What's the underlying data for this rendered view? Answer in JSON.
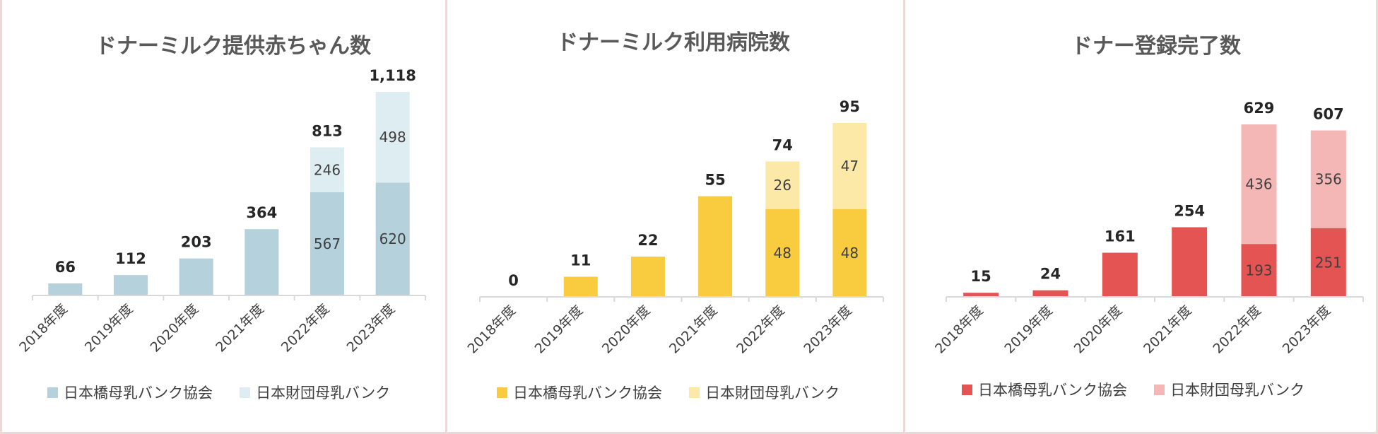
{
  "chart_data": [
    {
      "type": "bar",
      "stacked": true,
      "title": "ドナーミルク提供赤ちゃん数",
      "categories": [
        "2018年度",
        "2019年度",
        "2020年度",
        "2021年度",
        "2022年度",
        "2023年度"
      ],
      "series": [
        {
          "name": "日本橋母乳バンク協会",
          "values": [
            66,
            112,
            203,
            364,
            567,
            620
          ],
          "color": "#b4d1dc"
        },
        {
          "name": "日本財団母乳バンク",
          "values": [
            0,
            0,
            0,
            0,
            246,
            498
          ],
          "color": "#deedf2"
        }
      ],
      "totals": [
        66,
        112,
        203,
        364,
        813,
        1118
      ],
      "total_labels": [
        "66",
        "112",
        "203",
        "364",
        "813",
        "1,118"
      ],
      "show_segment_labels": [
        false,
        false,
        false,
        false,
        true,
        true
      ],
      "ylim": [
        0,
        1118
      ],
      "legend": "bottom",
      "grid": false
    },
    {
      "type": "bar",
      "stacked": true,
      "title": "ドナーミルク利用病院数",
      "categories": [
        "2018年度",
        "2019年度",
        "2020年度",
        "2021年度",
        "2022年度",
        "2023年度"
      ],
      "series": [
        {
          "name": "日本橋母乳バンク協会",
          "values": [
            0,
            11,
            22,
            55,
            48,
            48
          ],
          "color": "#f8cc3e"
        },
        {
          "name": "日本財団母乳バンク",
          "values": [
            0,
            0,
            0,
            0,
            26,
            47
          ],
          "color": "#fde9a7"
        }
      ],
      "totals": [
        0,
        11,
        22,
        55,
        74,
        95
      ],
      "total_labels": [
        "0",
        "11",
        "22",
        "55",
        "74",
        "95"
      ],
      "show_segment_labels": [
        false,
        false,
        false,
        false,
        true,
        true
      ],
      "ylim": [
        0,
        95
      ],
      "legend": "bottom",
      "grid": false
    },
    {
      "type": "bar",
      "stacked": true,
      "title": "ドナー登録完了数",
      "categories": [
        "2018年度",
        "2019年度",
        "2020年度",
        "2021年度",
        "2022年度",
        "2023年度"
      ],
      "series": [
        {
          "name": "日本橋母乳バンク協会",
          "values": [
            15,
            24,
            161,
            254,
            193,
            251
          ],
          "color": "#e35452"
        },
        {
          "name": "日本財団母乳バンク",
          "values": [
            0,
            0,
            0,
            0,
            436,
            356
          ],
          "color": "#f4b7b5"
        }
      ],
      "totals": [
        15,
        24,
        161,
        254,
        629,
        607
      ],
      "total_labels": [
        "15",
        "24",
        "161",
        "254",
        "629",
        "607"
      ],
      "show_segment_labels": [
        false,
        false,
        false,
        false,
        true,
        true
      ],
      "ylim": [
        0,
        629
      ],
      "legend": "bottom",
      "grid": false
    }
  ]
}
